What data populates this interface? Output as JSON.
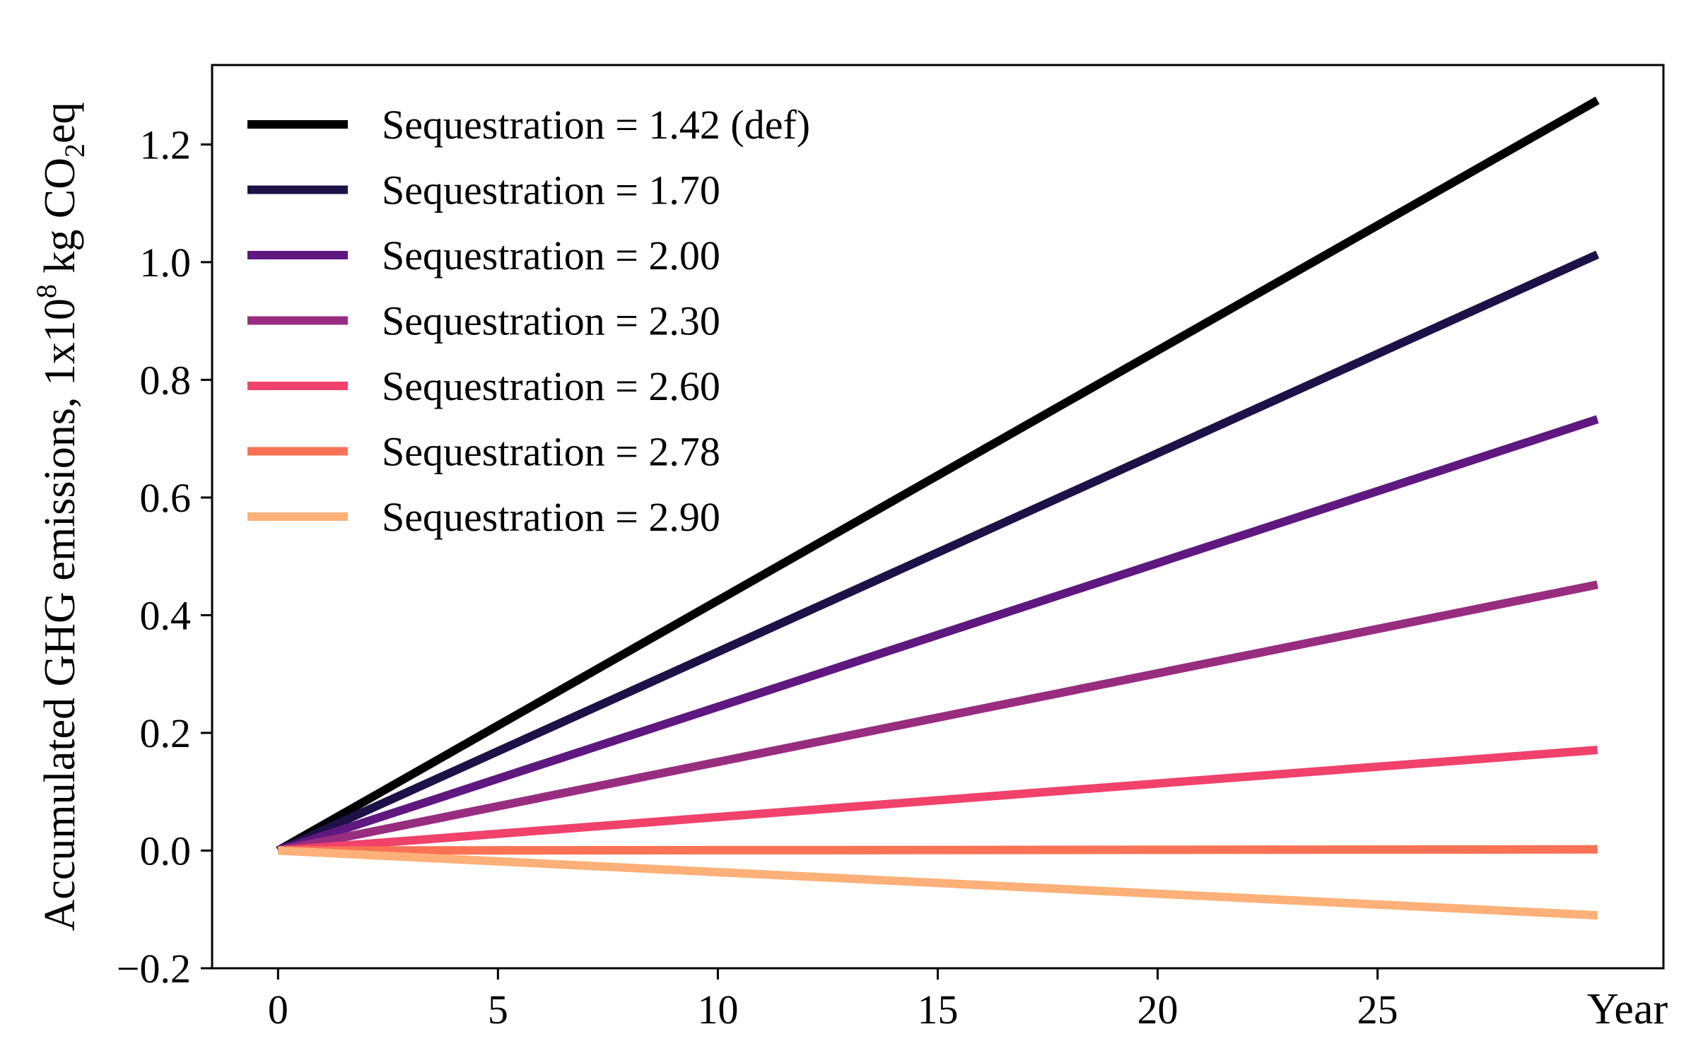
{
  "chart_data": {
    "type": "line",
    "title": "",
    "ylabel_prefix": "Accumulated GHG emissions, 1x10",
    "ylabel_exponent": "8",
    "ylabel_unit_prefix": " kg CO",
    "ylabel_unit_subscript": "2",
    "ylabel_unit_suffix": "eq",
    "xlabel": "Year",
    "xlim": [
      -1.5,
      31.5
    ],
    "ylim": [
      -0.2,
      1.335
    ],
    "xticks": [
      0,
      5,
      10,
      15,
      20,
      25
    ],
    "xtick_labels": [
      "0",
      "5",
      "10",
      "15",
      "20",
      "25"
    ],
    "yticks": [
      -0.2,
      0.0,
      0.2,
      0.4,
      0.6,
      0.8,
      1.0,
      1.2
    ],
    "ytick_labels": [
      "−0.2",
      "0.0",
      "0.2",
      "0.4",
      "0.6",
      "0.8",
      "1.0",
      "1.2"
    ],
    "grid": false,
    "legend_position": "top-left",
    "x": [
      0,
      30
    ],
    "series": [
      {
        "name": "Sequestration = 1.42 (def)",
        "color": "#000000",
        "values": [
          0.0,
          1.275
        ]
      },
      {
        "name": "Sequestration = 1.70",
        "color": "#1d1147",
        "values": [
          0.0,
          1.013
        ]
      },
      {
        "name": "Sequestration = 2.00",
        "color": "#5f187f",
        "values": [
          0.0,
          0.733
        ]
      },
      {
        "name": "Sequestration = 2.30",
        "color": "#982d80",
        "values": [
          0.0,
          0.452
        ]
      },
      {
        "name": "Sequestration = 2.60",
        "color": "#f0426a",
        "values": [
          0.0,
          0.171
        ]
      },
      {
        "name": "Sequestration = 2.78",
        "color": "#fa7255",
        "values": [
          0.0,
          0.002
        ]
      },
      {
        "name": "Sequestration = 2.90",
        "color": "#feb078",
        "values": [
          0.0,
          -0.11
        ]
      }
    ]
  }
}
